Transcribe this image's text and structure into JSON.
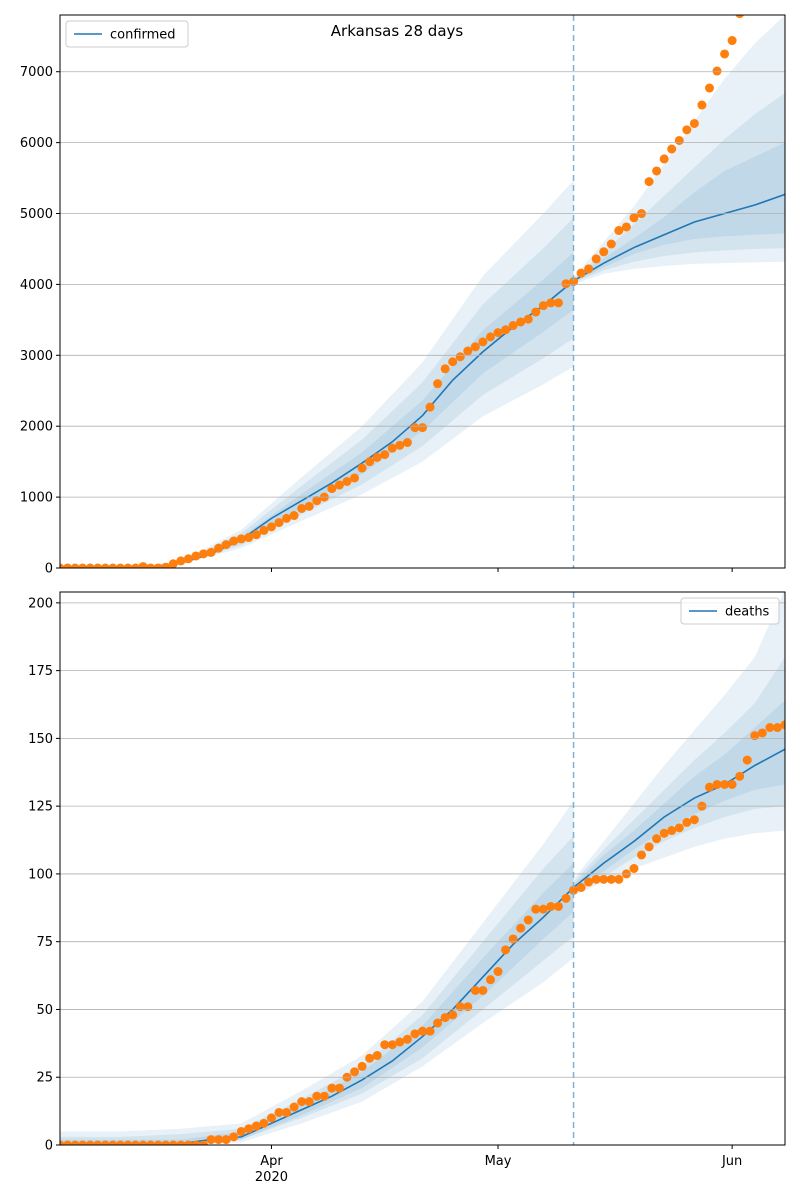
{
  "chart_data": [
    {
      "type": "line",
      "title": "Arkansas 28 days",
      "legend": "upper left",
      "grid": true,
      "xlim": [
        0,
        96
      ],
      "xticks": [
        28,
        58,
        89
      ],
      "ylim": [
        0,
        7800
      ],
      "yticks": [
        0,
        1000,
        2000,
        3000,
        4000,
        5000,
        6000,
        7000
      ],
      "vline": 68,
      "vline_color": "#7fb0d6",
      "band_color": "#1f77b4",
      "series": [
        {
          "name": "confirmed",
          "color": "#1f77b4",
          "x": [
            0,
            4,
            8,
            12,
            16,
            20,
            24,
            28,
            32,
            36,
            40,
            44,
            48,
            52,
            56,
            60,
            64,
            68,
            72,
            76,
            80,
            84,
            88,
            92,
            96
          ],
          "values": [
            0,
            0,
            0,
            5,
            70,
            200,
            400,
            700,
            950,
            1200,
            1480,
            1780,
            2150,
            2650,
            3050,
            3400,
            3700,
            4050,
            4300,
            4520,
            4700,
            4880,
            5000,
            5120,
            5270
          ]
        }
      ],
      "bands": [
        {
          "x": [
            0,
            8,
            16,
            24,
            32,
            40,
            48,
            56,
            64,
            68
          ],
          "lower": [
            0,
            0,
            49,
            280,
            665,
            1040,
            1500,
            2140,
            2590,
            2840
          ],
          "upper": [
            0,
            0,
            95,
            540,
            1280,
            2000,
            2900,
            4120,
            5000,
            5470
          ]
        },
        {
          "x": [
            0,
            8,
            16,
            24,
            32,
            40,
            48,
            56,
            64,
            68
          ],
          "lower": [
            0,
            0,
            56,
            320,
            760,
            1180,
            1720,
            2440,
            2960,
            3240
          ],
          "upper": [
            0,
            0,
            85,
            490,
            1160,
            1810,
            2620,
            3720,
            4510,
            4940
          ]
        },
        {
          "x": [
            0,
            8,
            16,
            24,
            32,
            40,
            48,
            56,
            64,
            68
          ],
          "lower": [
            0,
            0,
            63,
            360,
            855,
            1330,
            1935,
            2745,
            3330,
            3645
          ],
          "upper": [
            0,
            0,
            77,
            440,
            1045,
            1630,
            2365,
            3355,
            4070,
            4455
          ]
        },
        {
          "x": [
            68,
            72,
            76,
            80,
            84,
            88,
            92,
            96
          ],
          "lower": [
            4000,
            4150,
            4220,
            4260,
            4290,
            4300,
            4310,
            4320
          ],
          "upper": [
            4100,
            4600,
            5100,
            5700,
            6300,
            6900,
            7400,
            7800
          ]
        },
        {
          "x": [
            68,
            72,
            76,
            80,
            84,
            88,
            92,
            96
          ],
          "lower": [
            4020,
            4200,
            4320,
            4400,
            4450,
            4480,
            4500,
            4510
          ],
          "upper": [
            4080,
            4450,
            4850,
            5250,
            5650,
            6050,
            6400,
            6700
          ]
        },
        {
          "x": [
            68,
            72,
            76,
            80,
            84,
            88,
            92,
            96
          ],
          "lower": [
            4030,
            4240,
            4430,
            4560,
            4640,
            4680,
            4700,
            4720
          ],
          "upper": [
            4070,
            4370,
            4650,
            4950,
            5300,
            5600,
            5800,
            6000
          ]
        }
      ],
      "observed": {
        "color": "#ff7f0e",
        "x": [
          0,
          1,
          2,
          3,
          4,
          5,
          6,
          7,
          8,
          9,
          10,
          11,
          12,
          13,
          14,
          15,
          16,
          17,
          18,
          19,
          20,
          21,
          22,
          23,
          24,
          25,
          26,
          27,
          28,
          29,
          30,
          31,
          32,
          33,
          34,
          35,
          36,
          37,
          38,
          39,
          40,
          41,
          42,
          43,
          44,
          45,
          46,
          47,
          48,
          49,
          50,
          51,
          52,
          53,
          54,
          55,
          56,
          57,
          58,
          59,
          60,
          61,
          62,
          63,
          64,
          65,
          66,
          67,
          68,
          69,
          70,
          71,
          72,
          73,
          74,
          75,
          76,
          77,
          78,
          79,
          80,
          81,
          82,
          83,
          84,
          85,
          86,
          87,
          88,
          89,
          90
        ],
        "values": [
          0,
          0,
          0,
          0,
          0,
          0,
          0,
          0,
          0,
          0,
          0,
          20,
          0,
          0,
          10,
          60,
          100,
          130,
          170,
          200,
          220,
          280,
          330,
          380,
          410,
          430,
          470,
          530,
          580,
          640,
          700,
          740,
          840,
          870,
          950,
          1000,
          1120,
          1170,
          1220,
          1270,
          1410,
          1500,
          1560,
          1600,
          1690,
          1730,
          1770,
          1980,
          1980,
          2270,
          2600,
          2810,
          2910,
          2980,
          3060,
          3120,
          3190,
          3260,
          3320,
          3360,
          3420,
          3470,
          3510,
          3610,
          3700,
          3740,
          3740,
          4010,
          4040,
          4160,
          4220,
          4360,
          4460,
          4570,
          4760,
          4810,
          4940,
          5000,
          5450,
          5600,
          5770,
          5910,
          6030,
          6180,
          6270,
          6530,
          6770,
          7010,
          7250,
          7440,
          7820
        ]
      }
    },
    {
      "type": "line",
      "legend": "upper right",
      "grid": true,
      "xlim": [
        0,
        96
      ],
      "xticks": [
        {
          "value": 28,
          "label": "Apr\n2020"
        },
        {
          "value": 58,
          "label": "May"
        },
        {
          "value": 89,
          "label": "Jun"
        }
      ],
      "ylim": [
        0,
        204
      ],
      "yticks": [
        0,
        25,
        50,
        75,
        100,
        125,
        150,
        175,
        200
      ],
      "vline": 68,
      "vline_color": "#7fb0d6",
      "band_color": "#1f77b4",
      "series": [
        {
          "name": "deaths",
          "color": "#1f77b4",
          "x": [
            0,
            4,
            8,
            12,
            16,
            20,
            24,
            28,
            32,
            36,
            40,
            44,
            48,
            52,
            56,
            60,
            64,
            68,
            72,
            76,
            80,
            84,
            88,
            92,
            96
          ],
          "values": [
            0,
            0,
            0,
            0,
            0.5,
            2,
            3,
            8,
            13,
            18,
            24,
            31,
            40,
            50,
            62,
            74,
            84,
            95,
            104,
            112,
            121,
            128,
            133,
            140,
            146
          ]
        }
      ],
      "bands": [
        {
          "x": [
            0,
            8,
            16,
            24,
            32,
            40,
            48,
            56,
            64,
            68
          ],
          "lower": [
            0,
            0,
            0,
            1,
            8,
            16,
            29,
            45,
            60,
            69
          ],
          "upper": [
            5,
            5,
            6,
            8,
            20,
            33,
            53,
            82,
            111,
            127
          ]
        },
        {
          "x": [
            0,
            8,
            16,
            24,
            32,
            40,
            48,
            56,
            64,
            68
          ],
          "lower": [
            0,
            0,
            0,
            2,
            10,
            19,
            32,
            50,
            68,
            77
          ],
          "upper": [
            3,
            3,
            4,
            6,
            17,
            29,
            48,
            75,
            102,
            114
          ]
        },
        {
          "x": [
            0,
            8,
            16,
            24,
            32,
            40,
            48,
            56,
            64,
            68
          ],
          "lower": [
            0,
            0,
            0,
            2,
            11,
            21,
            36,
            55,
            76,
            86
          ],
          "upper": [
            2,
            2,
            2,
            5,
            15,
            27,
            44,
            69,
            93,
            104
          ]
        },
        {
          "x": [
            68,
            72,
            76,
            80,
            84,
            88,
            92,
            96
          ],
          "lower": [
            92,
            97,
            102,
            106,
            110,
            113,
            115,
            116
          ],
          "upper": [
            98,
            112,
            126,
            140,
            153,
            166,
            180,
            205
          ]
        },
        {
          "x": [
            68,
            72,
            76,
            80,
            84,
            88,
            92,
            96
          ],
          "lower": [
            93,
            99,
            106,
            112,
            117,
            121,
            124,
            125
          ],
          "upper": [
            97,
            109,
            120,
            131,
            142,
            152,
            163,
            180
          ]
        },
        {
          "x": [
            68,
            72,
            76,
            80,
            84,
            88,
            92,
            96
          ],
          "lower": [
            94,
            101,
            109,
            116,
            122,
            127,
            131,
            133
          ],
          "upper": [
            96,
            107,
            116,
            126,
            136,
            144,
            154,
            164
          ]
        }
      ],
      "observed": {
        "color": "#ff7f0e",
        "x": [
          0,
          1,
          2,
          3,
          4,
          5,
          6,
          7,
          8,
          9,
          10,
          11,
          12,
          13,
          14,
          15,
          16,
          17,
          18,
          19,
          20,
          21,
          22,
          23,
          24,
          25,
          26,
          27,
          28,
          29,
          30,
          31,
          32,
          33,
          34,
          35,
          36,
          37,
          38,
          39,
          40,
          41,
          42,
          43,
          44,
          45,
          46,
          47,
          48,
          49,
          50,
          51,
          52,
          53,
          54,
          55,
          56,
          57,
          58,
          59,
          60,
          61,
          62,
          63,
          64,
          65,
          66,
          67,
          68,
          69,
          70,
          71,
          72,
          73,
          74,
          75,
          76,
          77,
          78,
          79,
          80,
          81,
          82,
          83,
          84,
          85,
          86,
          87,
          88,
          89,
          90,
          91,
          92,
          93,
          94,
          95,
          96
        ],
        "values": [
          0,
          0,
          0,
          0,
          0,
          0,
          0,
          0,
          0,
          0,
          0,
          0,
          0,
          0,
          0,
          0,
          0,
          0,
          0,
          0,
          2,
          2,
          2,
          3,
          5,
          6,
          7,
          8,
          10,
          12,
          12,
          14,
          16,
          16,
          18,
          18,
          21,
          21,
          25,
          27,
          29,
          32,
          33,
          37,
          37,
          38,
          39,
          41,
          42,
          42,
          45,
          47,
          48,
          51,
          51,
          57,
          57,
          61,
          64,
          72,
          76,
          80,
          83,
          87,
          87,
          88,
          88,
          91,
          94,
          95,
          97,
          98,
          98,
          98,
          98,
          100,
          102,
          107,
          110,
          113,
          115,
          116,
          117,
          119,
          120,
          125,
          132,
          133,
          133,
          133,
          136,
          142,
          151,
          152,
          154,
          154,
          155
        ]
      }
    }
  ]
}
